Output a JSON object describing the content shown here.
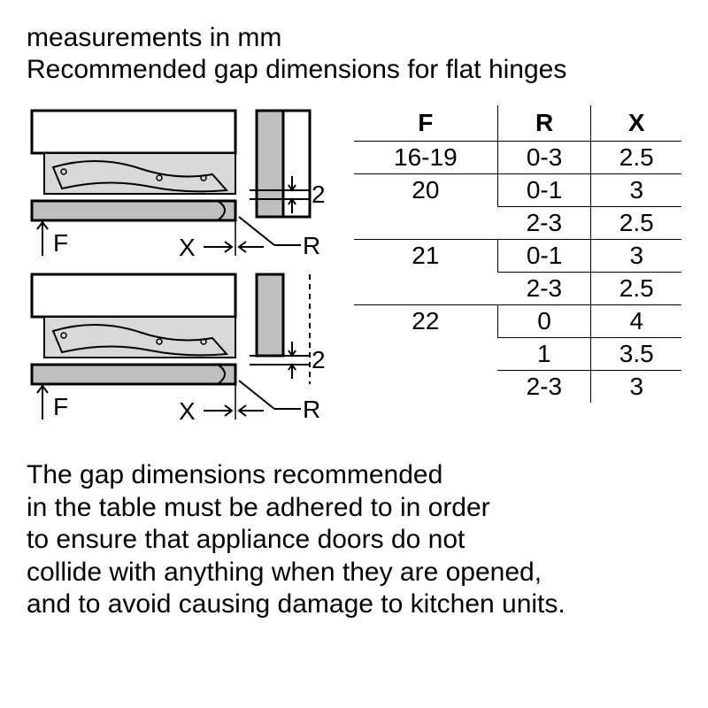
{
  "header": {
    "line1": "measurements in mm",
    "line2": "Recommended gap dimensions for flat hinges"
  },
  "diagrams": {
    "type": "technical-diagram",
    "colors": {
      "stroke": "#000000",
      "fill_light": "#d9d9d9",
      "fill_mid": "#bfbfbf",
      "background": "#ffffff"
    },
    "stroke_width": 2,
    "labels": {
      "F": "F",
      "X": "X",
      "R": "R",
      "gap_value": "2"
    }
  },
  "table": {
    "type": "table",
    "columns": [
      "F",
      "R",
      "X"
    ],
    "column_alignment": [
      "center",
      "center",
      "center"
    ],
    "fontsize": 28,
    "border_color": "#000000",
    "groups": [
      {
        "F": "16-19",
        "rows": [
          {
            "R": "0-3",
            "X": "2.5"
          }
        ]
      },
      {
        "F": "20",
        "rows": [
          {
            "R": "0-1",
            "X": "3"
          },
          {
            "R": "2-3",
            "X": "2.5"
          }
        ]
      },
      {
        "F": "21",
        "rows": [
          {
            "R": "0-1",
            "X": "3"
          },
          {
            "R": "2-3",
            "X": "2.5"
          }
        ]
      },
      {
        "F": "22",
        "rows": [
          {
            "R": "0",
            "X": "4"
          },
          {
            "R": "1",
            "X": "3.5"
          },
          {
            "R": "2-3",
            "X": "3"
          }
        ]
      }
    ]
  },
  "footer": {
    "text": "The gap dimensions recommended\nin the table must be adhered to in order\nto ensure that appliance doors do not\ncollide with anything when they are opened,\nand to avoid causing damage to kitchen units."
  }
}
